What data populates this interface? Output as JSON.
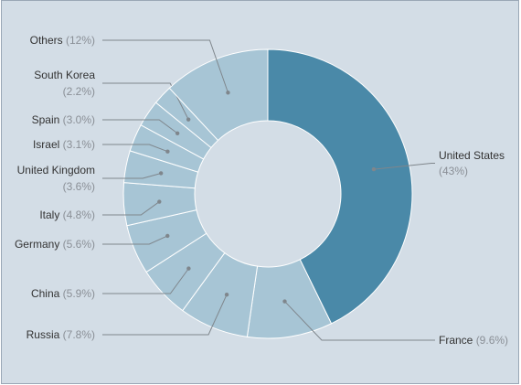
{
  "chart_data": {
    "type": "pie",
    "donut": true,
    "title": "",
    "legend": "none",
    "colors": {
      "highlight": "#4a89a8",
      "slice": "#a7c5d5",
      "slice_border": "#ffffff",
      "leader": "#7f868c",
      "background": "#d3dde6"
    },
    "slices": [
      {
        "name": "United States",
        "value": 43,
        "pct_label": "(43%)"
      },
      {
        "name": "France",
        "value": 9.6,
        "pct_label": "(9.6%)"
      },
      {
        "name": "Russia",
        "value": 7.8,
        "pct_label": "(7.8%)"
      },
      {
        "name": "China",
        "value": 5.9,
        "pct_label": "(5.9%)"
      },
      {
        "name": "Germany",
        "value": 5.6,
        "pct_label": "(5.6%)"
      },
      {
        "name": "Italy",
        "value": 4.8,
        "pct_label": "(4.8%)"
      },
      {
        "name": "United Kingdom",
        "value": 3.6,
        "pct_label": "(3.6%)"
      },
      {
        "name": "Israel",
        "value": 3.1,
        "pct_label": "(3.1%)"
      },
      {
        "name": "Spain",
        "value": 3.0,
        "pct_label": "(3.0%)"
      },
      {
        "name": "South Korea",
        "value": 2.2,
        "pct_label": "(2.2%)"
      },
      {
        "name": "Others",
        "value": 12,
        "pct_label": "(12%)"
      }
    ]
  }
}
